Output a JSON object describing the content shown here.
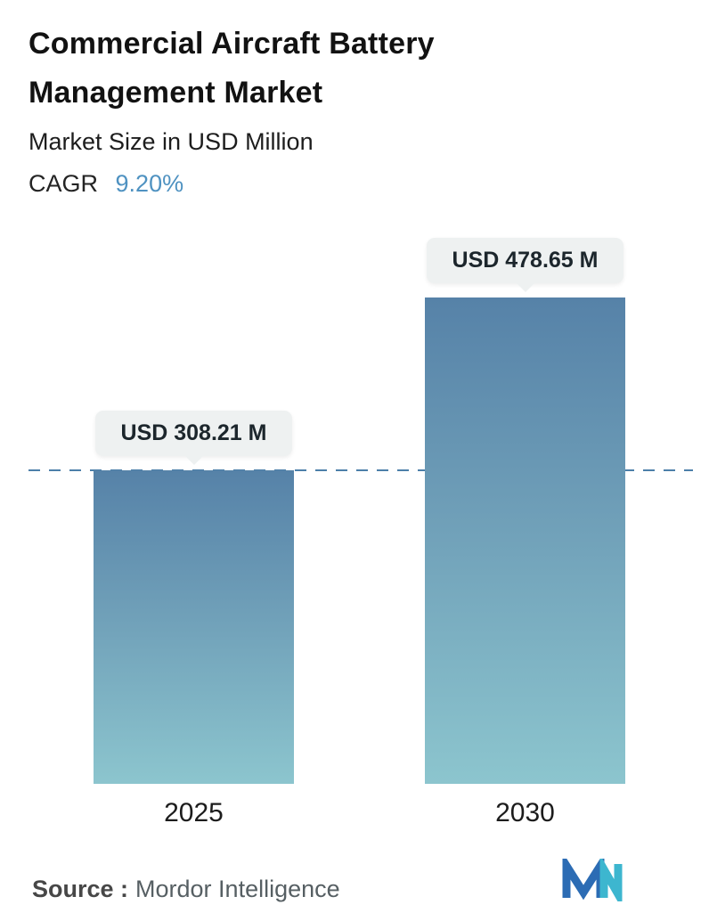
{
  "header": {
    "title": "Commercial Aircraft Battery Management Market",
    "subtitle": "Market Size in USD Million",
    "cagr_label": "CAGR",
    "cagr_value": "9.20%"
  },
  "chart_data": {
    "type": "bar",
    "title": "Commercial Aircraft Battery Management Market",
    "subtitle": "Market Size in USD Million",
    "unit": "USD Million",
    "cagr_percent": "9.20%",
    "categories": [
      "2025",
      "2030"
    ],
    "values": [
      308.21,
      478.65
    ],
    "value_labels": [
      "USD 308.21 M",
      "USD 478.65 M"
    ],
    "ylabel": "",
    "xlabel": "",
    "ylim": [
      0,
      500
    ],
    "grid": false,
    "legend": "none",
    "reference_line": {
      "value": 308.21,
      "style": "dashed",
      "color": "#4c7fa9"
    },
    "bar_gradient": {
      "top": "#5682a8",
      "bottom": "#8cc5ce"
    },
    "callout_background": "#eef1f1"
  },
  "colors": {
    "accent_blue": "#4f92c1",
    "dashed_line": "#4c7fa9",
    "title_text": "#121212",
    "logo_blue": "#2c6cb4",
    "logo_teal": "#3db6cf"
  },
  "footer": {
    "source_label": "Source :",
    "source_value": "Mordor Intelligence",
    "logo_name": "mordor-intelligence-logo"
  }
}
